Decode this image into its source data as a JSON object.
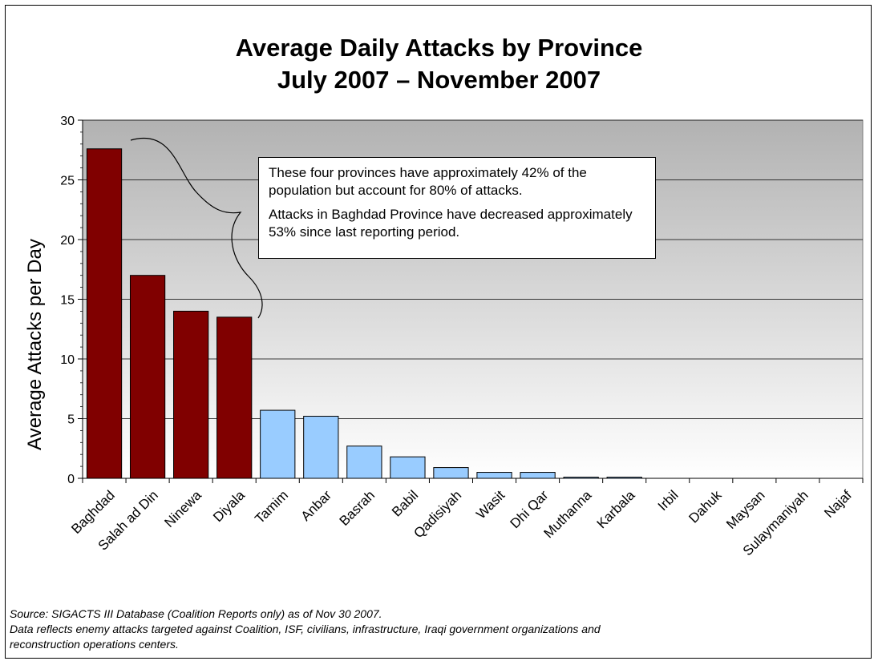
{
  "chart_data": {
    "type": "bar",
    "title": "Average Daily Attacks by Province",
    "subtitle": "July 2007 – November 2007",
    "ylabel": "Average Attacks per Day",
    "xlabel": "",
    "ylim": [
      0,
      30
    ],
    "yticks": [
      0,
      5,
      10,
      15,
      20,
      25,
      30
    ],
    "grid": true,
    "categories": [
      "Baghdad",
      "Salah ad Din",
      "Ninewa",
      "Diyala",
      "Tamim",
      "Anbar",
      "Basrah",
      "Babil",
      "Qadisiyah",
      "Wasit",
      "Dhi Qar",
      "Muthanna",
      "Karbala",
      "Irbil",
      "Dahuk",
      "Maysan",
      "Sulaymaniyah",
      "Najaf"
    ],
    "values": [
      27.6,
      17.0,
      14.0,
      13.5,
      5.7,
      5.2,
      2.7,
      1.8,
      0.9,
      0.5,
      0.5,
      0.1,
      0.1,
      0,
      0,
      0,
      0,
      0
    ],
    "highlight_count": 4,
    "colors": {
      "highlight": "#800000",
      "normal": "#99ccff",
      "bar_stroke": "#000000",
      "plot_top": "#b2b2b2",
      "plot_bottom": "#ffffff"
    },
    "annotation": {
      "lines": [
        "These four provinces have approximately 42% of the population but account for 80% of attacks.",
        "Attacks in Baghdad Province have decreased approximately 53% since last reporting period."
      ]
    }
  },
  "footer": {
    "source": "Source:  SIGACTS III Database (Coalition Reports only) as of Nov 30 2007.",
    "note_line1": "Data reflects enemy attacks targeted against Coalition, ISF, civilians, infrastructure, Iraqi government organizations and",
    "note_line2": "reconstruction operations centers."
  }
}
